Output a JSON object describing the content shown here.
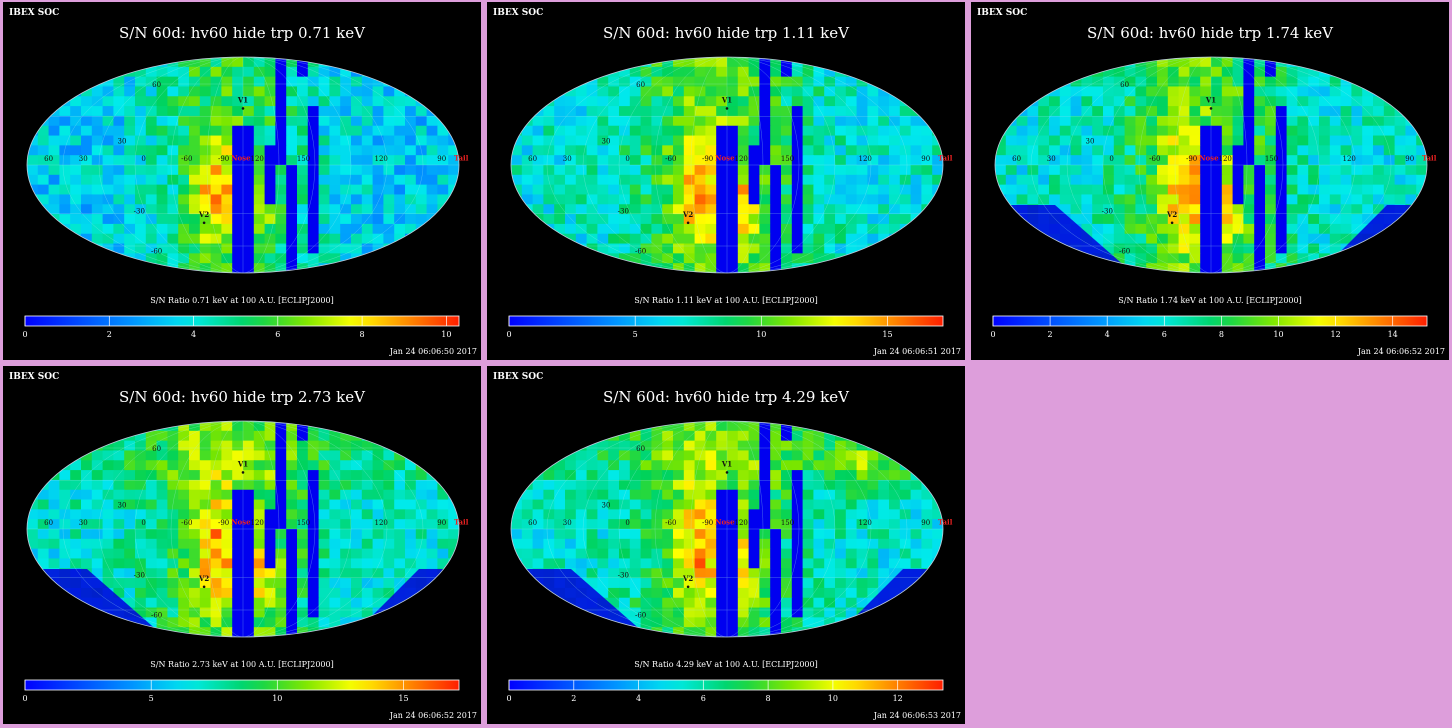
{
  "page": {
    "background": "#dd9edb"
  },
  "panels": [
    {
      "soc": "IBEX SOC",
      "title": "S/N  60d: hv60 hide trp 0.71 keV",
      "colorbar_title": "S/N Ratio 0.71 keV at 100 A.U. [ECLIPJ2000]",
      "timestamp": "Jan 24 06:06:50 2017"
    },
    {
      "soc": "IBEX SOC",
      "title": "S/N  60d: hv60 hide trp 1.11 keV",
      "colorbar_title": "S/N Ratio 1.11 keV at 100 A.U. [ECLIPJ2000]",
      "timestamp": "Jan 24 06:06:51 2017"
    },
    {
      "soc": "IBEX SOC",
      "title": "S/N  60d: hv60 hide trp 1.74 keV",
      "colorbar_title": "S/N Ratio 1.74 keV at 100 A.U. [ECLIPJ2000]",
      "timestamp": "Jan 24 06:06:52 2017"
    },
    {
      "soc": "IBEX SOC",
      "title": "S/N  60d: hv60 hide trp 2.73 keV",
      "colorbar_title": "S/N Ratio 2.73 keV at 100 A.U. [ECLIPJ2000]",
      "timestamp": "Jan 24 06:06:52 2017"
    },
    {
      "soc": "IBEX SOC",
      "title": "S/N  60d: hv60 hide trp 4.29 keV",
      "colorbar_title": "S/N Ratio 4.29 keV at 100 A.U. [ECLIPJ2000]",
      "timestamp": "Jan 24 06:06:53 2017"
    }
  ],
  "chart_data": [
    {
      "type": "heatmap",
      "title": "S/N  60d: hv60 hide trp 0.71 keV",
      "projection": "mollweide",
      "colorscale": "rainbow",
      "colorbar_range": [
        0,
        10.3
      ],
      "colorbar_ticks": [
        "0",
        "2",
        "4",
        "6",
        "8",
        "10"
      ],
      "markers": [
        "V1",
        "V2",
        "Nose",
        "Tail"
      ],
      "lon_labels": [
        "60",
        "30",
        "0",
        "-60",
        "-90",
        "-120",
        "150",
        "120",
        "90"
      ],
      "lat_labels": [
        "60",
        "30",
        "-30",
        "-60"
      ]
    },
    {
      "type": "heatmap",
      "title": "S/N  60d: hv60 hide trp 1.11 keV",
      "projection": "mollweide",
      "colorscale": "rainbow",
      "colorbar_range": [
        0,
        17.2
      ],
      "colorbar_ticks": [
        "0",
        "5",
        "10",
        "15"
      ],
      "markers": [
        "V1",
        "V2",
        "Nose",
        "Tail"
      ],
      "lon_labels": [
        "60",
        "30",
        "0",
        "-60",
        "-90",
        "-120",
        "150",
        "120",
        "90"
      ],
      "lat_labels": [
        "60",
        "30",
        "-30",
        "-60"
      ]
    },
    {
      "type": "heatmap",
      "title": "S/N  60d: hv60 hide trp 1.74 keV",
      "projection": "mollweide",
      "colorscale": "rainbow",
      "colorbar_range": [
        0,
        15.2
      ],
      "colorbar_ticks": [
        "0",
        "2",
        "4",
        "6",
        "8",
        "10",
        "12",
        "14"
      ],
      "markers": [
        "V1",
        "V2",
        "Nose",
        "Tail"
      ],
      "lon_labels": [
        "60",
        "30",
        "0",
        "-60",
        "-90",
        "-120",
        "150",
        "120",
        "90"
      ],
      "lat_labels": [
        "60",
        "30",
        "-30",
        "-60"
      ]
    },
    {
      "type": "heatmap",
      "title": "S/N  60d: hv60 hide trp 2.73 keV",
      "projection": "mollweide",
      "colorscale": "rainbow",
      "colorbar_range": [
        0,
        17.2
      ],
      "colorbar_ticks": [
        "0",
        "5",
        "10",
        "15"
      ],
      "markers": [
        "V1",
        "V2",
        "Nose",
        "Tail"
      ],
      "lon_labels": [
        "60",
        "30",
        "0",
        "-60",
        "-90",
        "-120",
        "150",
        "120",
        "90"
      ],
      "lat_labels": [
        "60",
        "30",
        "-30",
        "-60"
      ]
    },
    {
      "type": "heatmap",
      "title": "S/N  60d: hv60 hide trp 4.29 keV",
      "projection": "mollweide",
      "colorscale": "rainbow",
      "colorbar_range": [
        0,
        13.4
      ],
      "colorbar_ticks": [
        "0",
        "2",
        "4",
        "6",
        "8",
        "10",
        "12"
      ],
      "markers": [
        "V1",
        "V2",
        "Nose",
        "Tail"
      ],
      "lon_labels": [
        "60",
        "30",
        "0",
        "-60",
        "-90",
        "-120",
        "150",
        "120",
        "90"
      ],
      "lat_labels": [
        "60",
        "30",
        "-30",
        "-60"
      ]
    }
  ]
}
